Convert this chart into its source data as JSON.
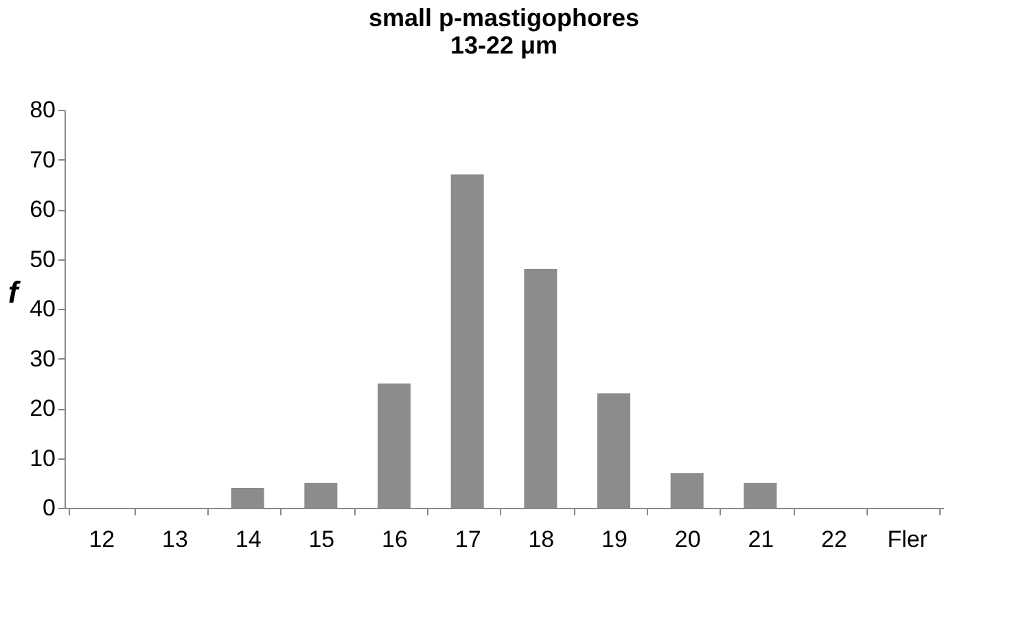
{
  "chart_data": {
    "type": "bar",
    "title": "small p-mastigophores\n13-22 μm",
    "ylabel": "f",
    "categories": [
      "12",
      "13",
      "14",
      "15",
      "16",
      "17",
      "18",
      "19",
      "20",
      "21",
      "22",
      "Fler"
    ],
    "values": [
      0,
      0,
      4,
      5,
      25,
      67,
      48,
      23,
      7,
      5,
      0,
      0
    ],
    "color": "#8c8c8c",
    "ylim": [
      0,
      80
    ],
    "yticks": [
      0,
      10,
      20,
      30,
      40,
      50,
      60,
      70,
      80
    ],
    "grid": false
  }
}
